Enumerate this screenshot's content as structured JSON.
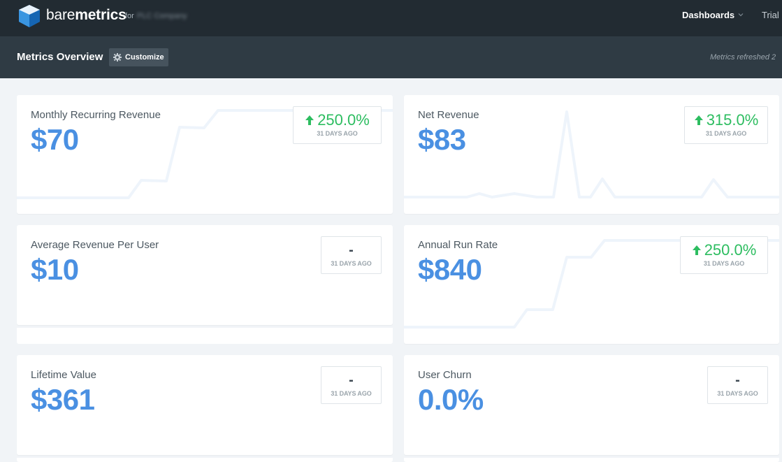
{
  "topbar": {
    "brand_light": "bare",
    "brand_bold": "metrics",
    "for_label": "for",
    "company": "PLC Company",
    "nav_dashboards": "Dashboards",
    "nav_trial": "Trial"
  },
  "subbar": {
    "title": "Metrics Overview",
    "customize_label": "Customize",
    "refreshed": "Metrics refreshed 2"
  },
  "colors": {
    "topbar_bg": "#222b32",
    "subbar_bg": "#2f3b44",
    "value_blue": "#4a90e2",
    "positive_green": "#2dbd60"
  },
  "metrics": [
    {
      "label": "Monthly Recurring Revenue",
      "value": "$70",
      "change": "250.0%",
      "direction": "up",
      "period": "31 DAYS AGO"
    },
    {
      "label": "Net Revenue",
      "value": "$83",
      "change": "315.0%",
      "direction": "up",
      "period": "31 DAYS AGO"
    },
    {
      "label": "Average Revenue Per User",
      "value": "$10",
      "change": "-",
      "direction": "none",
      "period": "31 DAYS AGO"
    },
    {
      "label": "Annual Run Rate",
      "value": "$840",
      "change": "250.0%",
      "direction": "up",
      "period": "31 DAYS AGO"
    },
    {
      "label": "Lifetime Value",
      "value": "$361",
      "change": "-",
      "direction": "none",
      "period": "31 DAYS AGO"
    },
    {
      "label": "User Churn",
      "value": "0.0%",
      "change": "-",
      "direction": "none",
      "period": "31 DAYS AGO"
    }
  ]
}
